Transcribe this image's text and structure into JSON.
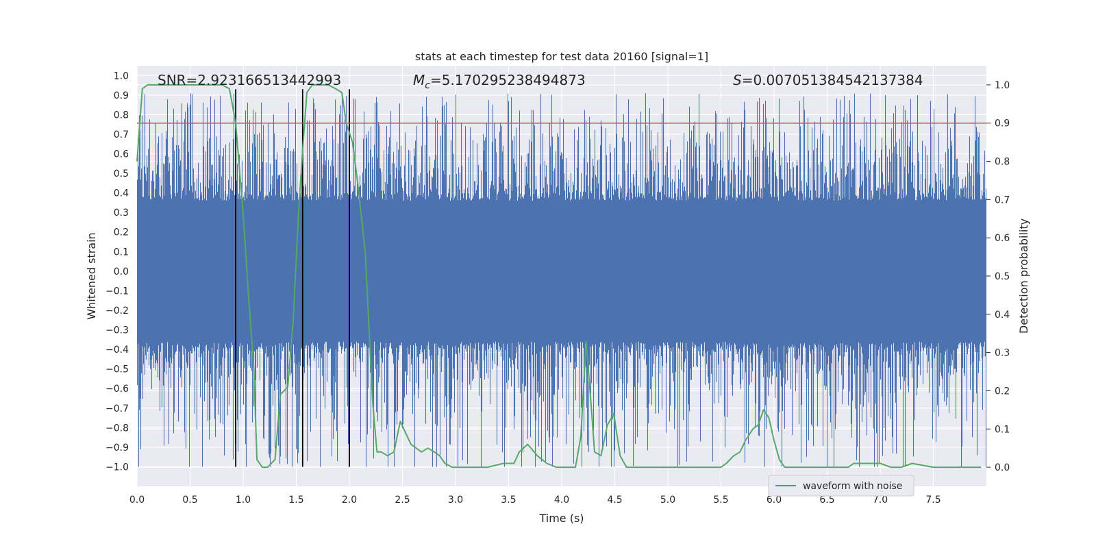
{
  "chart_data": {
    "type": "line",
    "title": "stats at each timestep for test data 20160 [signal=1]",
    "xlabel": "Time (s)",
    "ylabel": "Whitened strain",
    "ylabel_right": "Detection probability",
    "xlim": [
      0,
      8
    ],
    "ylim": [
      -1.1,
      1.05
    ],
    "ylim_right": [
      -0.05,
      1.05
    ],
    "x_ticks": [
      0,
      0.5,
      1,
      1.5,
      2,
      2.5,
      3,
      3.5,
      4,
      4.5,
      5,
      5.5,
      6,
      6.5,
      7,
      7.5
    ],
    "x_tick_labels": [
      "0.0",
      "0.5",
      "1.0",
      "1.5",
      "2.0",
      "2.5",
      "3.0",
      "3.5",
      "4.0",
      "4.5",
      "5.0",
      "5.5",
      "6.0",
      "6.5",
      "7.0",
      "7.5"
    ],
    "y_ticks": [
      1.0,
      0.9,
      0.8,
      0.7,
      0.6,
      0.5,
      0.4,
      0.3,
      0.2,
      0.1,
      0.0,
      -0.1,
      -0.2,
      -0.3,
      -0.4,
      -0.5,
      -0.6,
      -0.7,
      -0.8,
      -0.9,
      -1.0
    ],
    "y_tick_labels": [
      "1.0",
      "0.9",
      "0.8",
      "0.7",
      "0.6",
      "0.5",
      "0.4",
      "0.3",
      "0.2",
      "0.1",
      "0.0",
      "−0.1",
      "−0.2",
      "−0.3",
      "−0.4",
      "−0.5",
      "−0.6",
      "−0.7",
      "−0.8",
      "−0.9",
      "−1.0"
    ],
    "y_right_ticks": [
      1.0,
      0.9,
      0.8,
      0.7,
      0.6,
      0.5,
      0.4,
      0.3,
      0.2,
      0.1,
      0.0
    ],
    "y_right_tick_labels": [
      "1.0",
      "0.9",
      "0.8",
      "0.7",
      "0.6",
      "0.5",
      "0.4",
      "0.3",
      "0.2",
      "0.1",
      "0.0"
    ],
    "annotations": {
      "snr": "SNR=2.923166513442993",
      "mc_prefix": "M",
      "mc_sub": "c",
      "mc_value": "=5.170295238494873",
      "s_prefix": "S",
      "s_value": "=0.007051384542137384"
    },
    "legend": {
      "label": "waveform with noise",
      "position": "lower-right"
    },
    "threshold": {
      "value": 0.9,
      "axis": "right",
      "color": "#c44e52"
    },
    "vertical_lines": [
      0.93,
      1.56,
      2.0
    ],
    "vertical_line_range": [
      -1.0,
      0.93
    ],
    "series": [
      {
        "name": "waveform with noise",
        "color": "#4c72b0",
        "type": "strain",
        "t_range": [
          0,
          8
        ],
        "bulk_amplitude": 0.36,
        "peak_max": 0.93,
        "trough_min": -1.0
      },
      {
        "name": "detection probability",
        "color": "#55a868",
        "axis": "right",
        "x": [
          0.0,
          0.05,
          0.1,
          0.2,
          0.3,
          0.4,
          0.5,
          0.6,
          0.7,
          0.8,
          0.87,
          0.93,
          1.0,
          1.05,
          1.1,
          1.13,
          1.18,
          1.23,
          1.3,
          1.35,
          1.42,
          1.47,
          1.52,
          1.56,
          1.6,
          1.65,
          1.72,
          1.8,
          1.87,
          1.93,
          1.97,
          2.03,
          2.08,
          2.15,
          2.22,
          2.26,
          2.3,
          2.36,
          2.42,
          2.48,
          2.53,
          2.58,
          2.63,
          2.68,
          2.74,
          2.8,
          2.85,
          2.9,
          2.97,
          3.05,
          3.15,
          3.3,
          3.45,
          3.55,
          3.6,
          3.68,
          3.77,
          3.86,
          3.95,
          4.05,
          4.13,
          4.18,
          4.23,
          4.27,
          4.31,
          4.37,
          4.43,
          4.49,
          4.55,
          4.61,
          4.68,
          4.75,
          4.85,
          5.0,
          5.2,
          5.3,
          5.4,
          5.5,
          5.55,
          5.62,
          5.68,
          5.73,
          5.8,
          5.85,
          5.9,
          5.95,
          6.0,
          6.05,
          6.1,
          6.2,
          6.3,
          6.5,
          6.7,
          6.75,
          6.82,
          6.9,
          6.95,
          7.0,
          7.1,
          7.2,
          7.3,
          7.5,
          7.7,
          7.9,
          7.95
        ],
        "y": [
          0.8,
          0.99,
          1.0,
          1.0,
          1.0,
          1.0,
          1.0,
          1.0,
          1.0,
          1.0,
          0.99,
          0.9,
          0.66,
          0.45,
          0.26,
          0.02,
          0.0,
          0.0,
          0.02,
          0.19,
          0.21,
          0.38,
          0.66,
          0.83,
          0.98,
          1.0,
          1.0,
          1.0,
          0.99,
          0.98,
          0.9,
          0.85,
          0.74,
          0.56,
          0.17,
          0.04,
          0.04,
          0.03,
          0.04,
          0.12,
          0.09,
          0.06,
          0.05,
          0.04,
          0.05,
          0.04,
          0.03,
          0.01,
          0.0,
          0.0,
          0.0,
          0.0,
          0.01,
          0.01,
          0.04,
          0.06,
          0.03,
          0.01,
          0.0,
          0.0,
          0.0,
          0.08,
          0.33,
          0.19,
          0.04,
          0.03,
          0.11,
          0.14,
          0.03,
          0.0,
          0.0,
          0.0,
          0.0,
          0.0,
          0.0,
          0.0,
          0.0,
          0.0,
          0.01,
          0.03,
          0.04,
          0.07,
          0.1,
          0.11,
          0.15,
          0.13,
          0.07,
          0.02,
          0.0,
          0.0,
          0.0,
          0.0,
          0.0,
          0.01,
          0.01,
          0.01,
          0.01,
          0.01,
          0.0,
          0.0,
          0.01,
          0.0,
          0.0,
          0.0,
          0.0
        ]
      }
    ]
  }
}
